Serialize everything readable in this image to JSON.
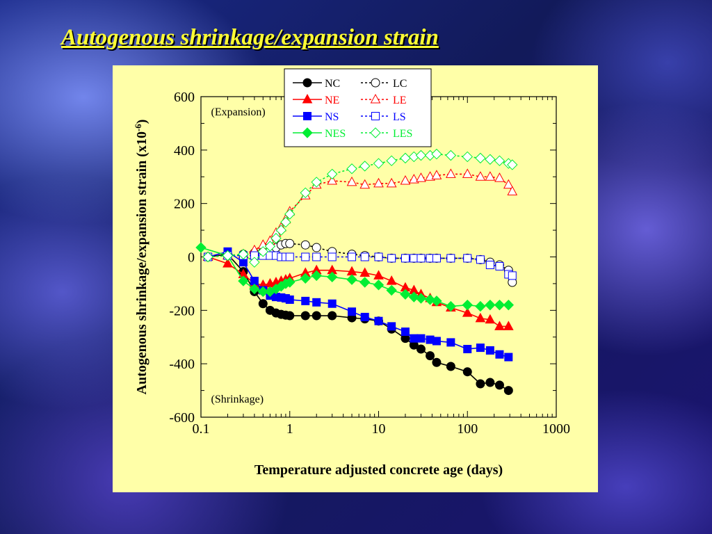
{
  "slide": {
    "title": "Autogenous shrinkage/expansion strain"
  },
  "colors": {
    "background": "#1a2a8a",
    "title": "#ffff33",
    "panel": "#ffffa8",
    "black": "#000000",
    "red": "#ff0000",
    "blue": "#0000ff",
    "green": "#00ee33"
  },
  "chart_data": {
    "type": "scatter",
    "xscale": "log",
    "xlim": [
      0.1,
      1000
    ],
    "ylim": [
      -600,
      600
    ],
    "xlabel": "Temperature adjusted concrete age (days)",
    "ylabel": "Autogenous shrinkage/expansion strain (x10",
    "ylabel_sup": "-6",
    "ylabel_end": ")",
    "xticks": [
      0.1,
      1,
      10,
      100,
      1000
    ],
    "xtick_labels": [
      "0.1",
      "1",
      "10",
      "100",
      "1000"
    ],
    "yticks": [
      600,
      400,
      200,
      0,
      -200,
      -400,
      -600
    ],
    "ytick_labels": [
      "600",
      "400",
      "200",
      "0",
      "-200",
      "-400",
      "-600"
    ],
    "annotations": [
      {
        "text": "(Expansion)",
        "x": 0.13,
        "y": 530
      },
      {
        "text": "(Shrinkage)",
        "x": 0.13,
        "y": -545
      }
    ],
    "legend": {
      "placement": "top-right"
    },
    "series": [
      {
        "name": "NC",
        "color": "#000000",
        "marker": "circle",
        "fill": "filled",
        "line": "solid",
        "x": [
          0.12,
          0.2,
          0.3,
          0.4,
          0.5,
          0.6,
          0.7,
          0.8,
          0.9,
          1.0,
          1.5,
          2,
          3,
          5,
          7,
          10,
          14,
          20,
          25,
          30,
          38,
          45,
          65,
          100,
          140,
          180,
          230,
          290
        ],
        "y": [
          0,
          10,
          -55,
          -130,
          -175,
          -200,
          -210,
          -215,
          -218,
          -220,
          -220,
          -220,
          -220,
          -228,
          -232,
          -240,
          -270,
          -305,
          -330,
          -345,
          -370,
          -395,
          -410,
          -430,
          -475,
          -470,
          -480,
          -500
        ]
      },
      {
        "name": "LC",
        "color": "#000000",
        "marker": "circle",
        "fill": "open",
        "line": "dashed",
        "x": [
          0.12,
          0.2,
          0.3,
          0.4,
          0.5,
          0.6,
          0.7,
          0.8,
          0.9,
          1.0,
          1.5,
          2,
          3,
          5,
          7,
          10,
          14,
          20,
          25,
          30,
          38,
          45,
          65,
          100,
          140,
          180,
          230,
          290,
          320
        ],
        "y": [
          0,
          5,
          10,
          15,
          20,
          25,
          35,
          45,
          50,
          50,
          45,
          35,
          20,
          10,
          5,
          0,
          -5,
          -5,
          -5,
          -5,
          -5,
          -5,
          -5,
          -5,
          -10,
          -20,
          -30,
          -50,
          -95
        ]
      },
      {
        "name": "NE",
        "color": "#ff0000",
        "marker": "triangle",
        "fill": "filled",
        "line": "solid",
        "x": [
          0.12,
          0.2,
          0.3,
          0.4,
          0.5,
          0.6,
          0.7,
          0.8,
          0.9,
          1.0,
          1.5,
          2,
          3,
          5,
          7,
          10,
          14,
          20,
          25,
          30,
          38,
          45,
          65,
          100,
          140,
          180,
          230,
          290
        ],
        "y": [
          0,
          -25,
          -65,
          -100,
          -105,
          -100,
          -95,
          -90,
          -85,
          -80,
          -60,
          -50,
          -50,
          -55,
          -60,
          -70,
          -90,
          -115,
          -125,
          -140,
          -155,
          -170,
          -190,
          -210,
          -230,
          -235,
          -260,
          -260
        ]
      },
      {
        "name": "LE",
        "color": "#ff0000",
        "marker": "triangle",
        "fill": "open",
        "line": "dashed",
        "x": [
          0.12,
          0.2,
          0.3,
          0.4,
          0.5,
          0.6,
          0.7,
          0.8,
          0.9,
          1.0,
          1.5,
          2,
          3,
          5,
          7,
          10,
          14,
          20,
          25,
          30,
          38,
          45,
          65,
          100,
          140,
          180,
          230,
          290,
          320
        ],
        "y": [
          0,
          5,
          10,
          25,
          45,
          60,
          90,
          110,
          140,
          170,
          230,
          270,
          285,
          280,
          270,
          275,
          275,
          285,
          290,
          295,
          300,
          305,
          310,
          310,
          300,
          300,
          295,
          270,
          245
        ]
      },
      {
        "name": "NS",
        "color": "#0000ff",
        "marker": "square",
        "fill": "filled",
        "line": "solid",
        "x": [
          0.12,
          0.2,
          0.3,
          0.4,
          0.5,
          0.6,
          0.7,
          0.8,
          0.9,
          1.0,
          1.5,
          2,
          3,
          5,
          7,
          10,
          14,
          20,
          25,
          30,
          38,
          45,
          65,
          100,
          140,
          180,
          230,
          290
        ],
        "y": [
          0,
          20,
          -20,
          -90,
          -125,
          -145,
          -150,
          -152,
          -155,
          -160,
          -165,
          -170,
          -175,
          -205,
          -225,
          -240,
          -260,
          -280,
          -305,
          -305,
          -310,
          -315,
          -320,
          -345,
          -340,
          -350,
          -365,
          -375
        ]
      },
      {
        "name": "LS",
        "color": "#0000ff",
        "marker": "square",
        "fill": "open",
        "line": "dashed",
        "x": [
          0.12,
          0.2,
          0.3,
          0.4,
          0.5,
          0.6,
          0.7,
          0.8,
          0.9,
          1.0,
          1.5,
          2,
          3,
          5,
          7,
          10,
          14,
          20,
          25,
          30,
          38,
          45,
          65,
          100,
          140,
          180,
          230,
          290,
          320
        ],
        "y": [
          0,
          5,
          5,
          5,
          5,
          5,
          5,
          0,
          0,
          0,
          0,
          0,
          0,
          0,
          0,
          0,
          -5,
          -5,
          -5,
          -5,
          -5,
          -5,
          -5,
          -5,
          -10,
          -30,
          -35,
          -65,
          -70
        ]
      },
      {
        "name": "NES",
        "color": "#00ee33",
        "marker": "diamond",
        "fill": "filled",
        "line": "solid",
        "x": [
          0.1,
          0.2,
          0.3,
          0.4,
          0.5,
          0.6,
          0.7,
          0.8,
          0.9,
          1.0,
          1.5,
          2,
          3,
          5,
          7,
          10,
          14,
          20,
          25,
          30,
          38,
          45,
          65,
          100,
          140,
          180,
          230,
          290
        ],
        "y": [
          35,
          5,
          -90,
          -120,
          -130,
          -130,
          -120,
          -110,
          -100,
          -95,
          -80,
          -70,
          -75,
          -85,
          -95,
          -105,
          -125,
          -140,
          -150,
          -155,
          -160,
          -165,
          -185,
          -180,
          -185,
          -180,
          -180,
          -180
        ]
      },
      {
        "name": "LES",
        "color": "#00ee33",
        "marker": "diamond",
        "fill": "open",
        "line": "dashed",
        "x": [
          0.12,
          0.2,
          0.3,
          0.4,
          0.5,
          0.6,
          0.7,
          0.8,
          0.9,
          1.0,
          1.5,
          2,
          3,
          5,
          7,
          10,
          14,
          20,
          25,
          30,
          38,
          45,
          65,
          100,
          140,
          180,
          230,
          290,
          320
        ],
        "y": [
          0,
          5,
          10,
          -20,
          20,
          40,
          70,
          100,
          130,
          160,
          240,
          280,
          310,
          330,
          340,
          350,
          360,
          370,
          375,
          380,
          380,
          385,
          380,
          375,
          370,
          365,
          360,
          350,
          345
        ]
      }
    ]
  }
}
